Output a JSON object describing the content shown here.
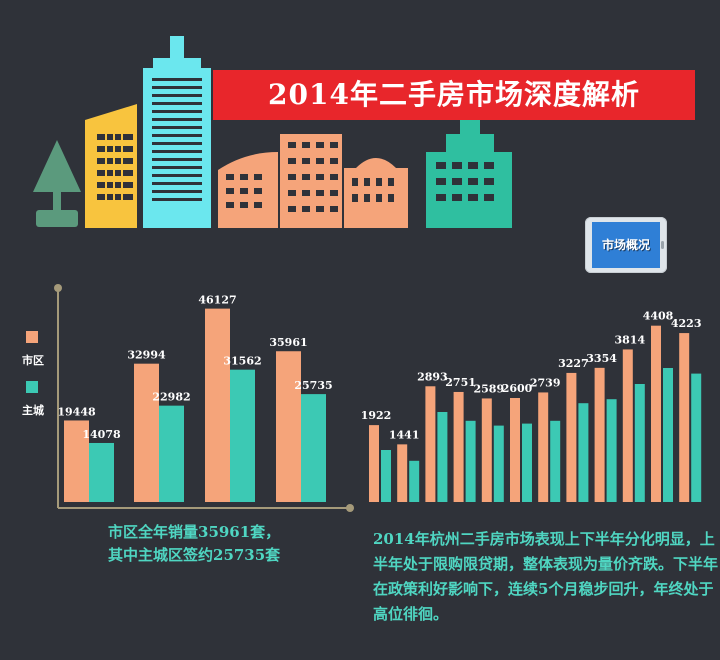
{
  "header": {
    "title": "2014年二手房市场深度解析",
    "badge": "市场概况"
  },
  "colors": {
    "background": "#2f3239",
    "series_city": "#f5a47a",
    "series_main": "#3cc9b4",
    "title_red": "#e8262b",
    "caption": "#4fd6c2"
  },
  "chart_data": [
    {
      "type": "bar",
      "categories": [
        "",
        "",
        "",
        ""
      ],
      "series": [
        {
          "name": "市区",
          "values": [
            19448,
            32994,
            46127,
            35961
          ]
        },
        {
          "name": "主城",
          "values": [
            14078,
            22982,
            31562,
            25735
          ]
        }
      ],
      "ylim": [
        0,
        52000
      ],
      "legend": "left",
      "grid": false
    },
    {
      "type": "bar",
      "categories": [
        "",
        "",
        "",
        "",
        "",
        "",
        "",
        "",
        "",
        "",
        "",
        ""
      ],
      "series": [
        {
          "name": "",
          "values": [
            1922,
            1441,
            2893,
            2751,
            2589,
            2600,
            2739,
            3227,
            3354,
            3814,
            4408,
            4223
          ]
        },
        {
          "values": [
            1300,
            1030,
            2250,
            2030,
            1910,
            1960,
            2030,
            2470,
            2570,
            2950,
            3350,
            3210
          ]
        }
      ],
      "ylim": [
        0,
        4900
      ],
      "grid": false
    }
  ],
  "captions": {
    "left_line1": "市区全年销量35961套，",
    "left_line2": "其中主城区签约25735套",
    "right": "2014年杭州二手房市场表现上下半年分化明显，上半年处于限购限贷期，整体表现为量价齐跌。下半年在政策利好影响下，连续5个月稳步回升，年终处于高位徘徊。"
  }
}
